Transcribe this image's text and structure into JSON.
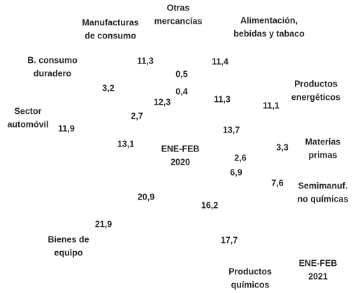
{
  "segments": [
    {
      "label": [
        "Manufacturas",
        "de consumo"
      ],
      "inner": "12,3",
      "outer": "11,3"
    },
    {
      "label": [
        "Otras",
        "mercancías"
      ],
      "inner": "0,4",
      "outer": "0,5"
    },
    {
      "label": [
        "Alimentación,",
        "bebidas y tabaco"
      ],
      "inner": "11,3",
      "outer": "11,4"
    },
    {
      "label": [
        "Productos",
        "energéticos"
      ],
      "inner": "13,7",
      "outer": "11,1"
    },
    {
      "label": [
        "Materias",
        "primas"
      ],
      "inner": "2,6",
      "outer": "3,3"
    },
    {
      "label": [
        "Semimanuf.",
        "no químicas"
      ],
      "inner": "6,9",
      "outer": "7,6"
    },
    {
      "label": [
        "Productos",
        "químicos"
      ],
      "inner": "16,2",
      "outer": "17,7"
    },
    {
      "label": [
        "Bienes de",
        "equipo"
      ],
      "inner": "20,9",
      "outer": "21,9"
    },
    {
      "label": [
        "Sector",
        "automóvil"
      ],
      "inner": "13,1",
      "outer": "11,9"
    },
    {
      "label": [
        "B. consumo",
        "duradero"
      ],
      "inner": "2,7",
      "outer": "3,2"
    }
  ],
  "periods": {
    "inner": [
      "ENE-FEB",
      "2020"
    ],
    "outer": [
      "ENE-FEB",
      "2021"
    ]
  }
}
